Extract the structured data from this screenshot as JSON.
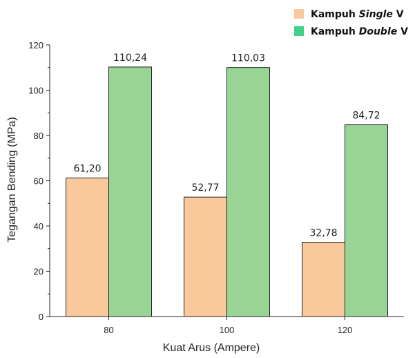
{
  "chart_data": {
    "type": "bar",
    "xlabel": "Kuat Arus (Ampere)",
    "ylabel": "Tegangan Bending (MPa)",
    "categories": [
      "80",
      "100",
      "120"
    ],
    "ylim": [
      0,
      120
    ],
    "yticks": [
      0,
      20,
      40,
      60,
      80,
      100,
      120
    ],
    "series": [
      {
        "name": "Kampuh Single V",
        "legend_prefix": "Kampuh ",
        "legend_italic": "Single",
        "legend_suffix": " V",
        "color": "#f9c89b",
        "values": [
          61.2,
          52.77,
          32.78
        ],
        "labels": [
          "61,20",
          "52,77",
          "32,78"
        ]
      },
      {
        "name": "Kampuh Double V",
        "legend_prefix": "Kampuh ",
        "legend_italic": "Double",
        "legend_suffix": " V",
        "color": "#98d595",
        "legend_color": "#3fd18a",
        "values": [
          110.24,
          110.03,
          84.72
        ],
        "labels": [
          "110,24",
          "110,03",
          "84,72"
        ]
      }
    ],
    "grid": false,
    "legend_position": "top-right"
  }
}
